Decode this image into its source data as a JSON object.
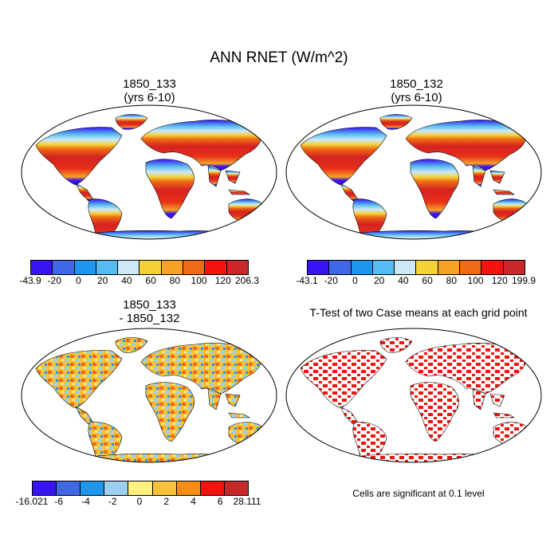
{
  "figure_title": "ANN RNET (W/m^2)",
  "panels": [
    {
      "id": "p1",
      "title_line1": "1850_133",
      "title_line2": "(yrs 6-10)",
      "colorbar": {
        "labels": [
          "-43.9",
          "-20",
          "0",
          "20",
          "40",
          "60",
          "80",
          "100",
          "120",
          "206.3"
        ],
        "colors": [
          "#3a14f0",
          "#3f67e6",
          "#1e96ee",
          "#55bbf0",
          "#cde9f7",
          "#f5d23a",
          "#f7a226",
          "#ee6a14",
          "#f2140e",
          "#c82828"
        ]
      }
    },
    {
      "id": "p2",
      "title_line1": "1850_132",
      "title_line2": "(yrs 6-10)",
      "colorbar": {
        "labels": [
          "-43.1",
          "-20",
          "0",
          "20",
          "40",
          "60",
          "80",
          "100",
          "120",
          "199.9"
        ],
        "colors": [
          "#3a14f0",
          "#3f67e6",
          "#1e96ee",
          "#55bbf0",
          "#cde9f7",
          "#f5d23a",
          "#f7a226",
          "#ee6a14",
          "#f2140e",
          "#c82828"
        ]
      }
    },
    {
      "id": "p3",
      "title_line1": "1850_133",
      "title_line2": "- 1850_132",
      "colorbar": {
        "labels": [
          "-16.021",
          "-6",
          "-4",
          "-2",
          "0",
          "2",
          "4",
          "6",
          "28.111"
        ],
        "colors": [
          "#3a14f0",
          "#3f67e6",
          "#1e96ee",
          "#9ccff0",
          "#fff080",
          "#f7c23a",
          "#f78c14",
          "#f2140e",
          "#c82828"
        ]
      }
    },
    {
      "id": "p4",
      "title_line1": "T-Test of two Case means at each grid point",
      "title_line2": ""
    }
  ],
  "significance_note": "Cells are significant at 0.1 level"
}
